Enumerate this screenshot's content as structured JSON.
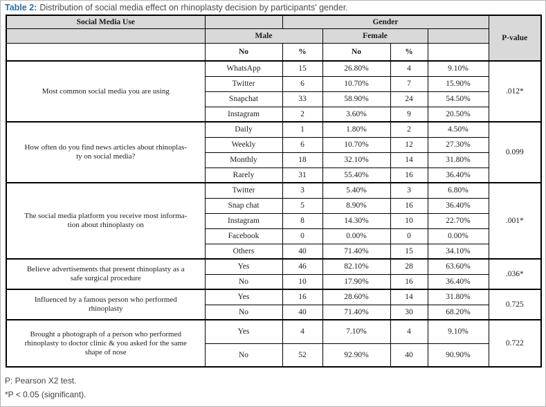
{
  "page": {
    "caption_label": "Table 2:",
    "caption_text": "Distribution of social media effect on rhinoplasty decision by participants' gender."
  },
  "colors": {
    "title_accent": "#2e6da4",
    "header_bg": "#d9d9d9",
    "border": "#000000"
  },
  "table": {
    "header": {
      "social_media_use": "Social Media Use",
      "gender": "Gender",
      "male": "Male",
      "female": "Female",
      "subheaders": [
        "No",
        "%",
        "No",
        "%"
      ],
      "p_value": "P-value"
    },
    "groups": [
      {
        "question": "Most common social media you are using",
        "rows": [
          {
            "label": "WhatsApp",
            "male_no": "15",
            "male_pct": "26.80%",
            "female_no": "4",
            "female_pct": "9.10%"
          },
          {
            "label": "Twitter",
            "male_no": "6",
            "male_pct": "10.70%",
            "female_no": "7",
            "female_pct": "15.90%"
          },
          {
            "label": "Snapchat",
            "male_no": "33",
            "male_pct": "58.90%",
            "female_no": "24",
            "female_pct": "54.50%"
          },
          {
            "label": "Instagram",
            "male_no": "2",
            "male_pct": "3.60%",
            "female_no": "9",
            "female_pct": "20.50%"
          }
        ],
        "p_value": ".012*"
      },
      {
        "question": "How often do you find news articles about rhinoplas-\nty on social media?",
        "rows": [
          {
            "label": "Daily",
            "male_no": "1",
            "male_pct": "1.80%",
            "female_no": "2",
            "female_pct": "4.50%"
          },
          {
            "label": "Weekly",
            "male_no": "6",
            "male_pct": "10.70%",
            "female_no": "12",
            "female_pct": "27.30%"
          },
          {
            "label": "Monthly",
            "male_no": "18",
            "male_pct": "32.10%",
            "female_no": "14",
            "female_pct": "31.80%"
          },
          {
            "label": "Rarely",
            "male_no": "31",
            "male_pct": "55.40%",
            "female_no": "16",
            "female_pct": "36.40%"
          }
        ],
        "p_value": "0.099"
      },
      {
        "question": "The social media platform you receive most informa-\ntion about rhinoplasty on",
        "rows": [
          {
            "label": "Twitter",
            "male_no": "3",
            "male_pct": "5.40%",
            "female_no": "3",
            "female_pct": "6.80%"
          },
          {
            "label": "Snap chat",
            "male_no": "5",
            "male_pct": "8.90%",
            "female_no": "16",
            "female_pct": "36.40%"
          },
          {
            "label": "Instagram",
            "male_no": "8",
            "male_pct": "14.30%",
            "female_no": "10",
            "female_pct": "22.70%"
          },
          {
            "label": "Facebook",
            "male_no": "0",
            "male_pct": "0.00%",
            "female_no": "0",
            "female_pct": "0.00%"
          },
          {
            "label": "Others",
            "male_no": "40",
            "male_pct": "71.40%",
            "female_no": "15",
            "female_pct": "34.10%"
          }
        ],
        "p_value": ".001*"
      },
      {
        "question": "Believe advertisements that present rhinoplasty as a\nsafe surgical procedure",
        "rows": [
          {
            "label": "Yes",
            "male_no": "46",
            "male_pct": "82.10%",
            "female_no": "28",
            "female_pct": "63.60%"
          },
          {
            "label": "No",
            "male_no": "10",
            "male_pct": "17.90%",
            "female_no": "16",
            "female_pct": "36.40%"
          }
        ],
        "p_value": ".036*"
      },
      {
        "question": "Influenced by a famous person who performed\nrhinoplasty",
        "rows": [
          {
            "label": "Yes",
            "male_no": "16",
            "male_pct": "28.60%",
            "female_no": "14",
            "female_pct": "31.80%"
          },
          {
            "label": "No",
            "male_no": "40",
            "male_pct": "71.40%",
            "female_no": "30",
            "female_pct": "68.20%"
          }
        ],
        "p_value": "0.725"
      },
      {
        "question": "Brought a photograph of a person who performed\nrhinoplasty to doctor clinic & you asked for the same\nshape of nose",
        "rows": [
          {
            "label": "Yes",
            "male_no": "4",
            "male_pct": "7.10%",
            "female_no": "4",
            "female_pct": "9.10%"
          },
          {
            "label": "No",
            "male_no": "52",
            "male_pct": "92.90%",
            "female_no": "40",
            "female_pct": "90.90%"
          }
        ],
        "p_value": "0.722"
      }
    ],
    "footnotes": [
      "P: Pearson X2 test.",
      "*P < 0.05 (significant)."
    ]
  }
}
